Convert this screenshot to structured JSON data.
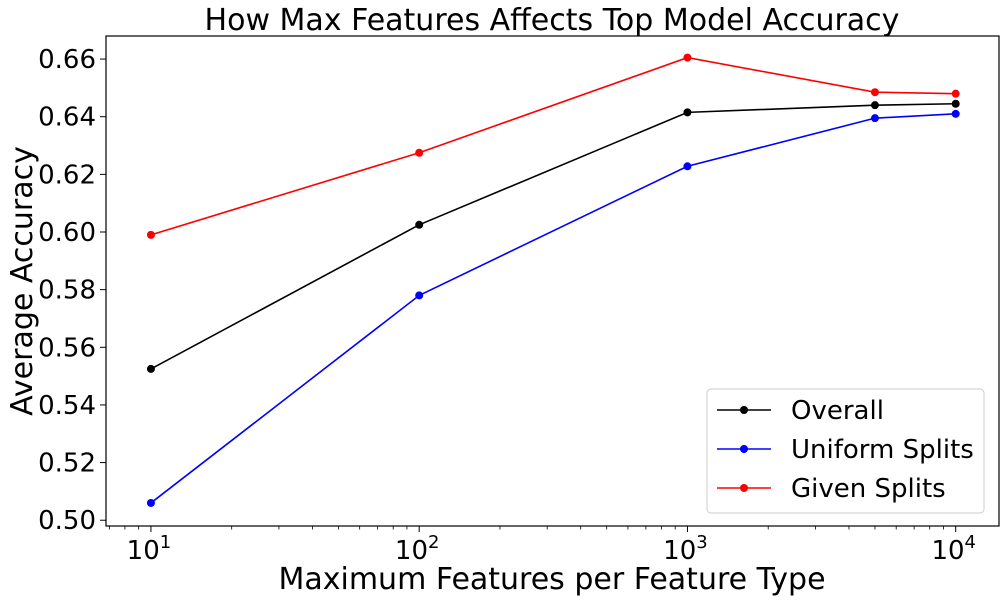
{
  "chart_data": {
    "type": "line",
    "title": "How Max Features Affects Top Model Accuracy",
    "xlabel": "Maximum Features per Feature Type",
    "ylabel": "Average Accuracy",
    "x_scale": "log",
    "x": [
      10,
      100,
      1000,
      5000,
      10000
    ],
    "x_ticks": [
      {
        "value": 10,
        "base": "10",
        "exp": "1"
      },
      {
        "value": 100,
        "base": "10",
        "exp": "2"
      },
      {
        "value": 1000,
        "base": "10",
        "exp": "3"
      },
      {
        "value": 10000,
        "base": "10",
        "exp": "4"
      }
    ],
    "xlim": [
      6.8,
      14500
    ],
    "ylim": [
      0.498,
      0.668
    ],
    "y_ticks": [
      0.5,
      0.52,
      0.54,
      0.56,
      0.58,
      0.6,
      0.62,
      0.64,
      0.66
    ],
    "y_tick_labels": [
      "0.50",
      "0.52",
      "0.54",
      "0.56",
      "0.58",
      "0.60",
      "0.62",
      "0.64",
      "0.66"
    ],
    "grid": false,
    "legend_position": "bottom-right",
    "series": [
      {
        "name": "Overall",
        "color": "#000000",
        "values": [
          0.5525,
          0.6025,
          0.6415,
          0.644,
          0.6445
        ]
      },
      {
        "name": "Uniform Splits",
        "color": "#0000ff",
        "values": [
          0.506,
          0.578,
          0.6228,
          0.6395,
          0.641
        ]
      },
      {
        "name": "Given Splits",
        "color": "#ff0000",
        "values": [
          0.599,
          0.6275,
          0.6605,
          0.6485,
          0.648
        ]
      }
    ]
  }
}
